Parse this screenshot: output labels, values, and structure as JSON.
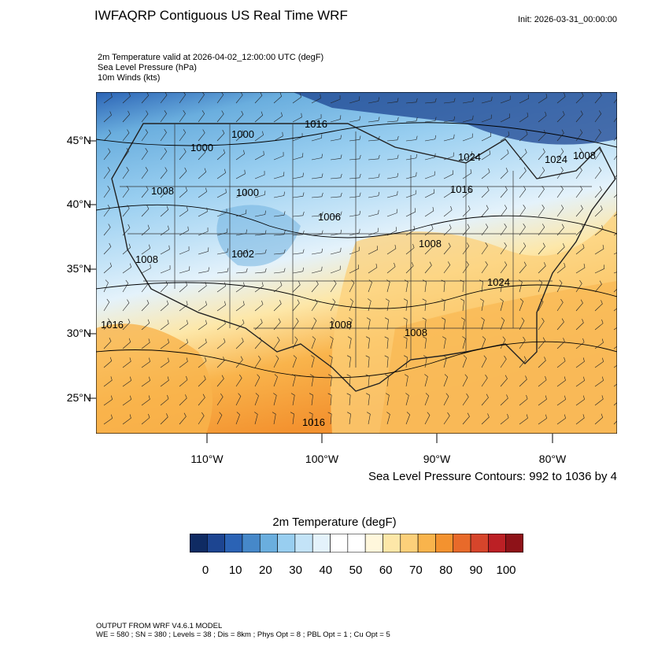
{
  "title": "IWFAQRP Contiguous US Real Time WRF",
  "init": "Init: 2026-03-31_00:00:00",
  "fields": [
    "2m Temperature valid at 2026-04-02_12:00:00 UTC   (degF)",
    "Sea Level Pressure   (hPa)",
    "10m Winds   (kts)"
  ],
  "lat_labels": [
    "45°N",
    "40°N",
    "35°N",
    "30°N",
    "25°N"
  ],
  "lon_labels": [
    "110°W",
    "100°W",
    "90°W",
    "80°W"
  ],
  "contours_note": "Sea Level Pressure Contours: 992 to 1036 by 4",
  "pressure_labels": [
    "1016",
    "1000",
    "1000",
    "1008",
    "1000",
    "1006",
    "1008",
    "1024",
    "1024",
    "1016",
    "1008",
    "1002",
    "1008",
    "1024",
    "1016",
    "1008",
    "1016",
    "1008"
  ],
  "colorbar": {
    "title": "2m Temperature  (degF)",
    "labels": [
      "0",
      "10",
      "20",
      "30",
      "40",
      "50",
      "60",
      "70",
      "80",
      "90",
      "100"
    ],
    "colors": [
      "#0f2b63",
      "#1d4591",
      "#2b63b5",
      "#4688c9",
      "#6aaede",
      "#98cef0",
      "#c3e3f7",
      "#e4f2fb",
      "#ffffff",
      "#ffffff",
      "#fff7dc",
      "#fde7a8",
      "#fcd07a",
      "#f9b44c",
      "#f3922f",
      "#e86a2a",
      "#d6452b",
      "#bc2025",
      "#8e1218"
    ]
  },
  "footer": [
    "OUTPUT FROM WRF V4.6.1 MODEL",
    "WE = 580 ; SN = 380 ; Levels = 38 ; Dis = 8km ; Phys Opt = 8 ; PBL Opt = 1 ; Cu Opt = 5"
  ]
}
